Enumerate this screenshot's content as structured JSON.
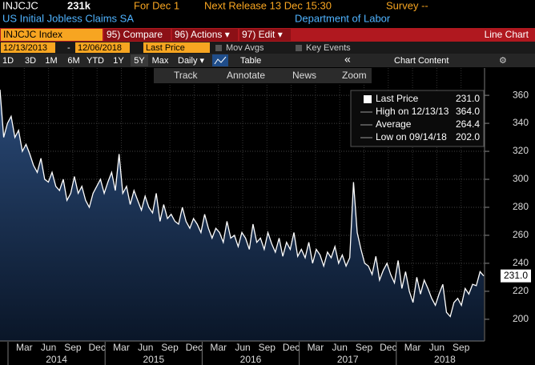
{
  "header": {
    "ticker": "INJCJC",
    "value": "231k",
    "for": "For Dec 1",
    "next_release": "Next Release 13 Dec 15:30",
    "survey": "Survey --",
    "name": "US Initial Jobless Claims SA",
    "source": "Department of Labor"
  },
  "toolbar": {
    "security": "INJCJC Index",
    "buttons": [
      "95) Compare",
      "96) Actions ▾",
      "97) Edit ▾"
    ],
    "view": "Line Chart",
    "start_date": "12/13/2013",
    "dash": "-",
    "end_date": "12/06/2018",
    "field": "Last Price",
    "checks": [
      "Mov Avgs",
      "Key Events"
    ],
    "periods": [
      "1D",
      "3D",
      "1M",
      "6M",
      "YTD",
      "1Y",
      "5Y",
      "Max"
    ],
    "frequency": "Daily ▾",
    "table": "Table",
    "collapse": "«",
    "chart_content": "Chart Content"
  },
  "chart_tools": [
    "Track",
    "Annotate",
    "News",
    "Zoom"
  ],
  "legend": [
    {
      "label": "Last Price",
      "value": "231.0"
    },
    {
      "label": "High on 12/13/13",
      "value": "364.0"
    },
    {
      "label": "Average",
      "value": "264.4"
    },
    {
      "label": "Low on 09/14/18",
      "value": "202.0"
    }
  ],
  "chart_data": {
    "type": "line",
    "series": [
      {
        "name": "Last Price",
        "color": "#ffffff",
        "values": [
          364,
          330,
          340,
          345,
          330,
          335,
          320,
          325,
          318,
          310,
          305,
          315,
          300,
          298,
          305,
          295,
          292,
          300,
          285,
          290,
          302,
          290,
          295,
          285,
          280,
          290,
          295,
          300,
          290,
          298,
          305,
          292,
          318,
          290,
          295,
          282,
          292,
          285,
          278,
          288,
          280,
          276,
          290,
          270,
          282,
          272,
          275,
          270,
          268,
          280,
          270,
          265,
          272,
          268,
          262,
          275,
          265,
          258,
          265,
          262,
          255,
          270,
          258,
          260,
          252,
          262,
          258,
          250,
          268,
          255,
          258,
          250,
          262,
          254,
          248,
          258,
          245,
          255,
          250,
          262,
          245,
          250,
          244,
          255,
          240,
          250,
          246,
          238,
          248,
          244,
          252,
          240,
          246,
          238,
          244,
          298,
          262,
          250,
          240,
          238,
          232,
          245,
          228,
          235,
          240,
          232,
          226,
          242,
          222,
          234,
          220,
          212,
          230,
          218,
          228,
          222,
          215,
          210,
          218,
          225,
          205,
          202,
          212,
          215,
          210,
          222,
          218,
          225,
          224,
          234,
          231
        ]
      }
    ],
    "ylim": [
      184.5,
      379.5
    ],
    "yticks": [
      200,
      220,
      240,
      260,
      280,
      300,
      320,
      340,
      360
    ],
    "x_labels": [
      "Mar",
      "Jun",
      "Sep",
      "Dec",
      "Mar",
      "Jun",
      "Sep",
      "Dec",
      "Mar",
      "Jun",
      "Sep",
      "Dec",
      "Mar",
      "Jun",
      "Sep",
      "Dec",
      "Mar",
      "Jun",
      "Sep"
    ],
    "years": [
      "2014",
      "2015",
      "2016",
      "2017",
      "2018"
    ],
    "last_value_label": "231.0",
    "grid": true
  }
}
